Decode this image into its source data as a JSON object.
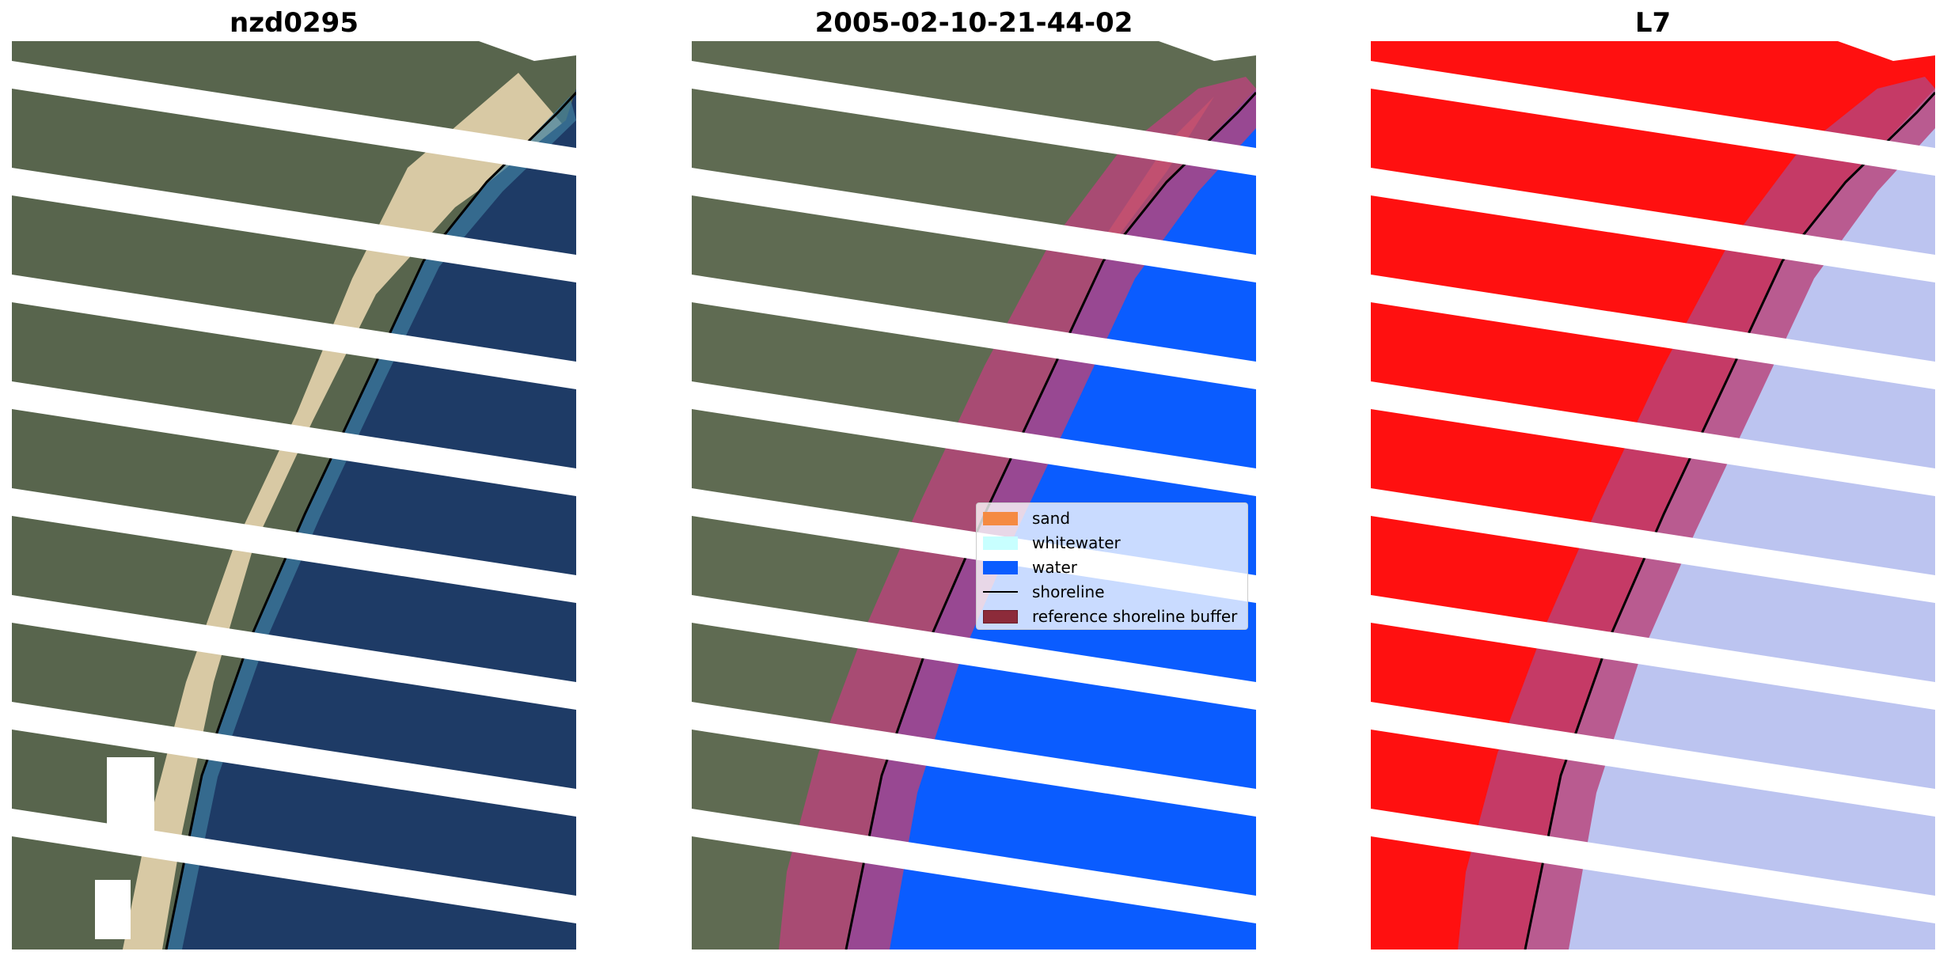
{
  "figure": {
    "panels": [
      {
        "title": "nzd0295",
        "content": "RGB satellite image"
      },
      {
        "title": "2005-02-10-21-44-02",
        "content": "classified image overlay"
      },
      {
        "title": "L7",
        "content": "water index image"
      }
    ],
    "legend": {
      "items": [
        {
          "label": "sand",
          "color": "#f58a42"
        },
        {
          "label": "whitewater",
          "color": "#c8ffff"
        },
        {
          "label": "water",
          "color": "#0a5cff"
        },
        {
          "label": "shoreline",
          "color": "#000000"
        },
        {
          "label": "reference shoreline buffer",
          "color": "#8c2b3a"
        }
      ]
    },
    "colors": {
      "land": "#5e6a52",
      "sand": "#d9cba6",
      "ocean": "#1d3a66",
      "water_class": "#0a5cff",
      "buffer": "#b8447a",
      "index_land": "#ff1010",
      "index_water": "#bcc4f0",
      "gap": "#ffffff"
    }
  }
}
